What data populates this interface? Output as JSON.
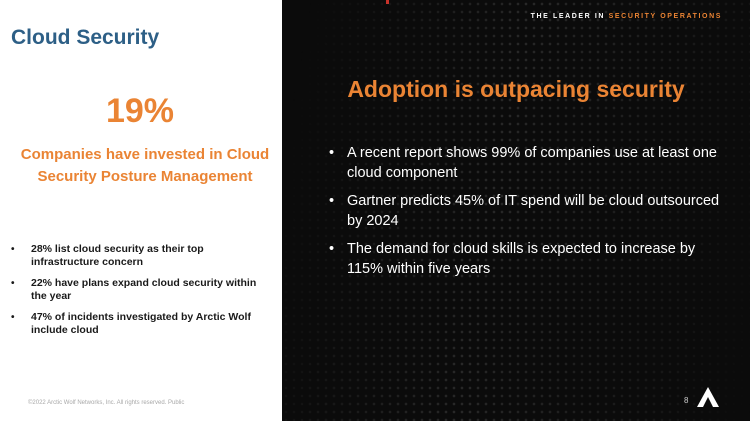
{
  "left": {
    "title": "Cloud Security",
    "stat_number": "19%",
    "stat_caption": "Companies have invested in Cloud Security Posture Management",
    "bullets": [
      "28%  list cloud security as their top infrastructure concern",
      "22% have plans expand cloud security within the year",
      "47% of incidents investigated by Arctic Wolf include cloud"
    ],
    "copyright": "©2022 Arctic Wolf Networks, Inc. All rights reserved. Public"
  },
  "right": {
    "tagline_prefix": "THE LEADER IN ",
    "tagline_accent": "SECURITY OPERATIONS",
    "headline": "Adoption is outpacing security",
    "bullets": [
      "A recent report shows 99% of companies use at least one cloud component",
      "Gartner predicts 45% of IT spend will be cloud outsourced by 2024",
      "The demand for cloud skills is expected to increase by 115% within five years"
    ],
    "page_number": "8",
    "logo_icon": "arctic-wolf-logo-icon"
  },
  "bullet_glyph": "•",
  "colors": {
    "title_blue": "#2d5f86",
    "accent_orange": "#ea8434",
    "dark_bg": "#0b0b0b"
  }
}
